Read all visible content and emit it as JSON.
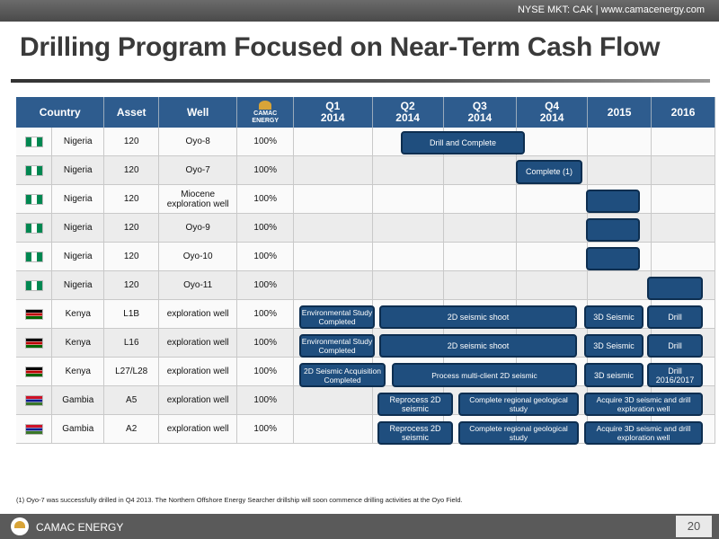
{
  "header": {
    "ticker": "NYSE MKT: CAK | www.camacenergy.com"
  },
  "title": "Drilling Program Focused on Near-Term Cash Flow",
  "table": {
    "columns": {
      "country": "Country",
      "asset": "Asset",
      "well": "Well",
      "logo": "CAMAC ENERGY",
      "q1": "Q1\n2014",
      "q2": "Q2\n2014",
      "q3": "Q3\n2014",
      "q4": "Q4\n2014",
      "y2015": "2015",
      "y2016": "2016"
    },
    "rows": [
      {
        "flag": "ng",
        "country": "Nigeria",
        "asset": "120",
        "well": "Oyo-8",
        "pct": "100%"
      },
      {
        "flag": "ng",
        "country": "Nigeria",
        "asset": "120",
        "well": "Oyo-7",
        "pct": "100%"
      },
      {
        "flag": "ng",
        "country": "Nigeria",
        "asset": "120",
        "well": "Miocene exploration well",
        "pct": "100%"
      },
      {
        "flag": "ng",
        "country": "Nigeria",
        "asset": "120",
        "well": "Oyo-9",
        "pct": "100%"
      },
      {
        "flag": "ng",
        "country": "Nigeria",
        "asset": "120",
        "well": "Oyo-10",
        "pct": "100%"
      },
      {
        "flag": "ng",
        "country": "Nigeria",
        "asset": "120",
        "well": "Oyo-11",
        "pct": "100%"
      },
      {
        "flag": "ke",
        "country": "Kenya",
        "asset": "L1B",
        "well": "exploration well",
        "pct": "100%"
      },
      {
        "flag": "ke",
        "country": "Kenya",
        "asset": "L16",
        "well": "exploration well",
        "pct": "100%"
      },
      {
        "flag": "ke",
        "country": "Kenya",
        "asset": "L27/L28",
        "well": "exploration well",
        "pct": "100%"
      },
      {
        "flag": "gm",
        "country": "Gambia",
        "asset": "A5",
        "well": "exploration well",
        "pct": "100%"
      },
      {
        "flag": "gm",
        "country": "Gambia",
        "asset": "A2",
        "well": "exploration well",
        "pct": "100%"
      }
    ],
    "activities": [
      {
        "row": 0,
        "label": "Drill and Complete"
      },
      {
        "row": 1,
        "label": "Complete (1)"
      },
      {
        "row": 2,
        "label": ""
      },
      {
        "row": 3,
        "label": ""
      },
      {
        "row": 4,
        "label": ""
      },
      {
        "row": 5,
        "label": ""
      },
      {
        "row": 6,
        "label": "Environmental Study Completed"
      },
      {
        "row": 6,
        "label": "2D seismic shoot"
      },
      {
        "row": 6,
        "label": "3D Seismic"
      },
      {
        "row": 6,
        "label": "Drill"
      },
      {
        "row": 7,
        "label": "Environmental Study Completed"
      },
      {
        "row": 7,
        "label": "2D seismic shoot"
      },
      {
        "row": 7,
        "label": "3D Seismic"
      },
      {
        "row": 7,
        "label": "Drill"
      },
      {
        "row": 8,
        "label": "2D Seismic Acquisition Completed"
      },
      {
        "row": 8,
        "label": "Process multi-client 2D seismic"
      },
      {
        "row": 8,
        "label": "3D seismic"
      },
      {
        "row": 8,
        "label": "Drill 2016/2017"
      },
      {
        "row": 9,
        "label": "Reprocess 2D seismic"
      },
      {
        "row": 9,
        "label": "Complete regional geological study"
      },
      {
        "row": 9,
        "label": "Acquire 3D seismic and drill exploration well"
      },
      {
        "row": 10,
        "label": "Reprocess 2D seismic"
      },
      {
        "row": 10,
        "label": "Complete regional geological study"
      },
      {
        "row": 10,
        "label": "Acquire 3D seismic and drill exploration well"
      }
    ]
  },
  "footnote": "(1) Oyo-7 was successfully drilled in Q4 2013. The Northern Offshore Energy Searcher drillship will soon commence drilling activities at the Oyo Field.",
  "footer": {
    "brand": "CAMAC ENERGY",
    "page": "20"
  }
}
